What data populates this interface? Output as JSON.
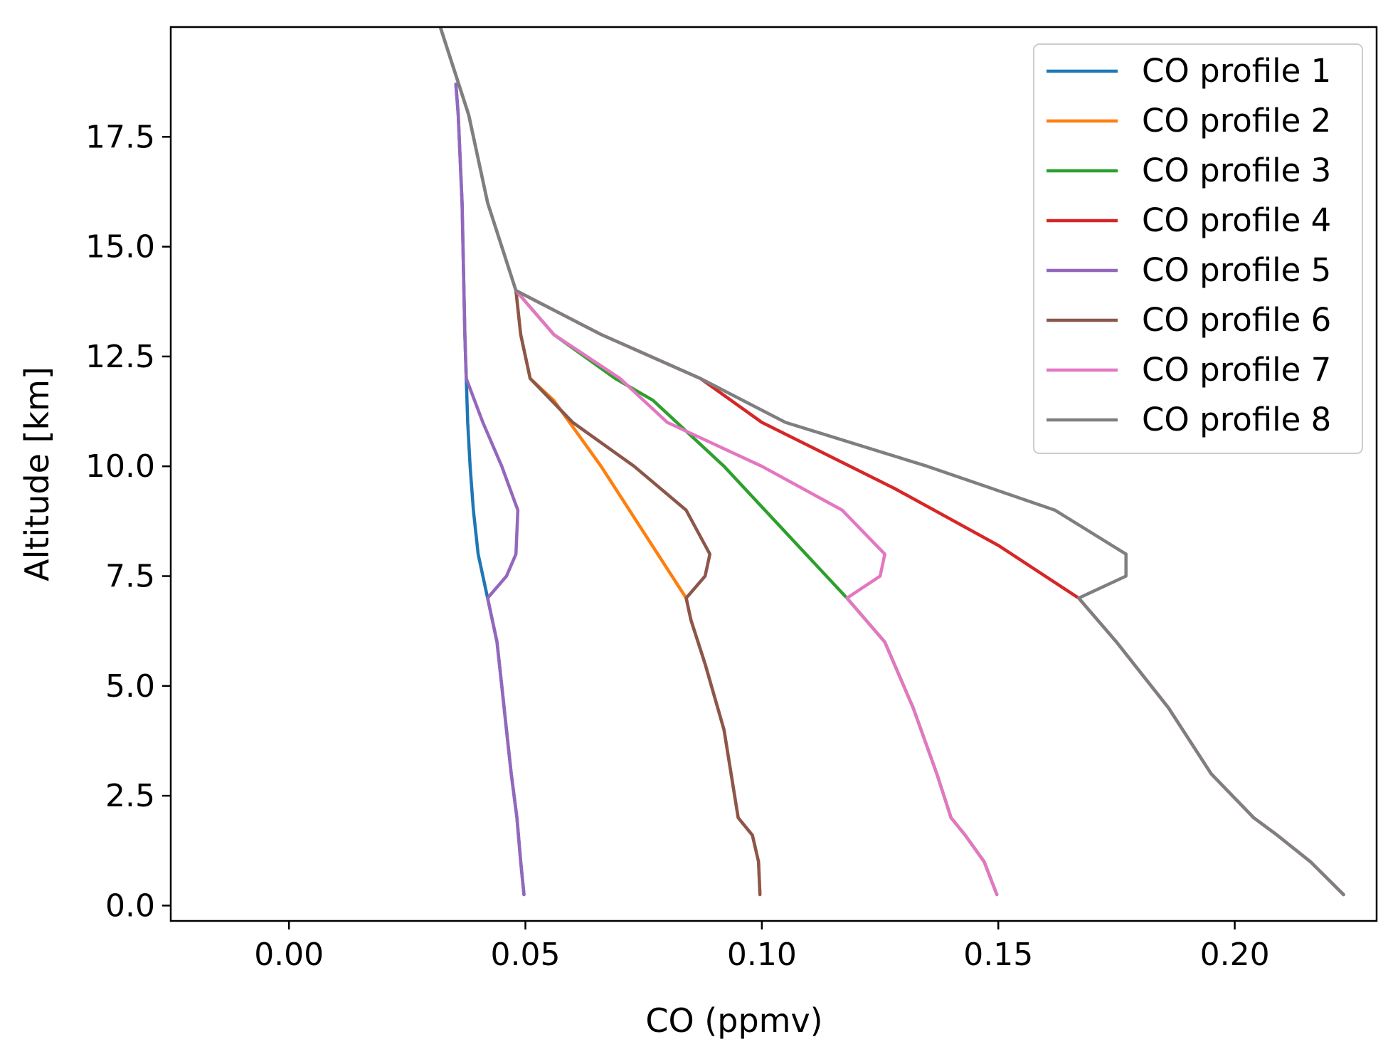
{
  "chart_data": {
    "type": "line",
    "title": "",
    "xlabel": "CO (ppmv)",
    "ylabel": "Altitude [km]",
    "xlim": [
      -0.025,
      0.23
    ],
    "ylim": [
      -0.35,
      20.0
    ],
    "xticks": [
      0.0,
      0.05,
      0.1,
      0.15,
      0.2
    ],
    "xtick_labels": [
      "0.00",
      "0.05",
      "0.10",
      "0.15",
      "0.20"
    ],
    "yticks": [
      0.0,
      2.5,
      5.0,
      7.5,
      10.0,
      12.5,
      15.0,
      17.5
    ],
    "ytick_labels": [
      "0.0",
      "2.5",
      "5.0",
      "7.5",
      "10.0",
      "12.5",
      "15.0",
      "17.5"
    ],
    "grid": false,
    "legend_position": "top-right",
    "series": [
      {
        "name": "CO profile 1",
        "color": "#1f77b4",
        "points": [
          [
            0.0497,
            0.25
          ],
          [
            0.049,
            1.0
          ],
          [
            0.0482,
            2.0
          ],
          [
            0.047,
            3.0
          ],
          [
            0.046,
            4.0
          ],
          [
            0.045,
            5.0
          ],
          [
            0.044,
            6.0
          ],
          [
            0.042,
            7.0
          ],
          [
            0.04,
            8.0
          ],
          [
            0.039,
            9.0
          ],
          [
            0.0383,
            10.0
          ],
          [
            0.0378,
            11.0
          ],
          [
            0.0375,
            12.0
          ],
          [
            0.0372,
            13.0
          ],
          [
            0.037,
            14.0
          ],
          [
            0.0368,
            15.0
          ],
          [
            0.0366,
            16.0
          ],
          [
            0.0362,
            17.0
          ],
          [
            0.0358,
            18.0
          ],
          [
            0.0353,
            18.7
          ]
        ]
      },
      {
        "name": "CO profile 2",
        "color": "#ff7f0e",
        "points": [
          [
            0.0996,
            0.25
          ],
          [
            0.0993,
            1.0
          ],
          [
            0.098,
            1.6
          ],
          [
            0.095,
            2.0
          ],
          [
            0.092,
            4.0
          ],
          [
            0.088,
            5.5
          ],
          [
            0.085,
            6.5
          ],
          [
            0.084,
            7.0
          ],
          [
            0.075,
            8.5
          ],
          [
            0.066,
            10.0
          ],
          [
            0.056,
            11.5
          ],
          [
            0.051,
            12.0
          ],
          [
            0.049,
            13.0
          ],
          [
            0.048,
            14.0
          ]
        ]
      },
      {
        "name": "CO profile 3",
        "color": "#2ca02c",
        "points": [
          [
            0.1497,
            0.25
          ],
          [
            0.147,
            1.0
          ],
          [
            0.143,
            1.6
          ],
          [
            0.14,
            2.0
          ],
          [
            0.137,
            3.0
          ],
          [
            0.132,
            4.5
          ],
          [
            0.126,
            6.0
          ],
          [
            0.118,
            7.0
          ],
          [
            0.105,
            8.5
          ],
          [
            0.092,
            10.0
          ],
          [
            0.077,
            11.5
          ],
          [
            0.069,
            12.0
          ],
          [
            0.056,
            13.0
          ],
          [
            0.048,
            14.0
          ]
        ]
      },
      {
        "name": "CO profile 4",
        "color": "#d62728",
        "points": [
          [
            0.223,
            0.25
          ],
          [
            0.216,
            1.0
          ],
          [
            0.209,
            1.6
          ],
          [
            0.204,
            2.0
          ],
          [
            0.195,
            3.0
          ],
          [
            0.186,
            4.5
          ],
          [
            0.175,
            6.0
          ],
          [
            0.167,
            7.0
          ],
          [
            0.15,
            8.2
          ],
          [
            0.128,
            9.5
          ],
          [
            0.1,
            11.0
          ],
          [
            0.087,
            12.0
          ],
          [
            0.066,
            13.0
          ],
          [
            0.048,
            14.0
          ]
        ]
      },
      {
        "name": "CO profile 5",
        "color": "#9467bd",
        "points": [
          [
            0.0497,
            0.25
          ],
          [
            0.049,
            1.0
          ],
          [
            0.0482,
            2.0
          ],
          [
            0.047,
            3.0
          ],
          [
            0.046,
            4.0
          ],
          [
            0.045,
            5.0
          ],
          [
            0.044,
            6.0
          ],
          [
            0.042,
            7.0
          ],
          [
            0.046,
            7.5
          ],
          [
            0.048,
            8.0
          ],
          [
            0.0484,
            9.0
          ],
          [
            0.045,
            10.0
          ],
          [
            0.041,
            11.0
          ],
          [
            0.0375,
            12.0
          ],
          [
            0.0372,
            13.0
          ],
          [
            0.037,
            14.0
          ],
          [
            0.0368,
            15.0
          ],
          [
            0.0366,
            16.0
          ],
          [
            0.0362,
            17.0
          ],
          [
            0.0358,
            18.0
          ],
          [
            0.0353,
            18.7
          ]
        ]
      },
      {
        "name": "CO profile 6",
        "color": "#8c564b",
        "points": [
          [
            0.0996,
            0.25
          ],
          [
            0.0993,
            1.0
          ],
          [
            0.098,
            1.6
          ],
          [
            0.095,
            2.0
          ],
          [
            0.092,
            4.0
          ],
          [
            0.088,
            5.5
          ],
          [
            0.085,
            6.5
          ],
          [
            0.084,
            7.0
          ],
          [
            0.088,
            7.5
          ],
          [
            0.089,
            8.0
          ],
          [
            0.084,
            9.0
          ],
          [
            0.073,
            10.0
          ],
          [
            0.06,
            11.0
          ],
          [
            0.051,
            12.0
          ],
          [
            0.049,
            13.0
          ],
          [
            0.048,
            14.0
          ],
          [
            0.042,
            16.0
          ],
          [
            0.038,
            18.0
          ],
          [
            0.032,
            20.0
          ]
        ]
      },
      {
        "name": "CO profile 7",
        "color": "#e377c2",
        "points": [
          [
            0.1497,
            0.25
          ],
          [
            0.147,
            1.0
          ],
          [
            0.143,
            1.6
          ],
          [
            0.14,
            2.0
          ],
          [
            0.137,
            3.0
          ],
          [
            0.132,
            4.5
          ],
          [
            0.126,
            6.0
          ],
          [
            0.118,
            7.0
          ],
          [
            0.125,
            7.5
          ],
          [
            0.126,
            8.0
          ],
          [
            0.117,
            9.0
          ],
          [
            0.1,
            10.0
          ],
          [
            0.08,
            11.0
          ],
          [
            0.07,
            12.0
          ],
          [
            0.056,
            13.0
          ],
          [
            0.048,
            14.0
          ]
        ]
      },
      {
        "name": "CO profile 8",
        "color": "#7f7f7f",
        "points": [
          [
            0.223,
            0.25
          ],
          [
            0.216,
            1.0
          ],
          [
            0.209,
            1.6
          ],
          [
            0.204,
            2.0
          ],
          [
            0.195,
            3.0
          ],
          [
            0.186,
            4.5
          ],
          [
            0.175,
            6.0
          ],
          [
            0.167,
            7.0
          ],
          [
            0.177,
            7.5
          ],
          [
            0.177,
            8.0
          ],
          [
            0.162,
            9.0
          ],
          [
            0.135,
            10.0
          ],
          [
            0.105,
            11.0
          ],
          [
            0.087,
            12.0
          ],
          [
            0.066,
            13.0
          ],
          [
            0.048,
            14.0
          ],
          [
            0.042,
            16.0
          ],
          [
            0.038,
            18.0
          ],
          [
            0.032,
            20.0
          ]
        ]
      }
    ]
  }
}
